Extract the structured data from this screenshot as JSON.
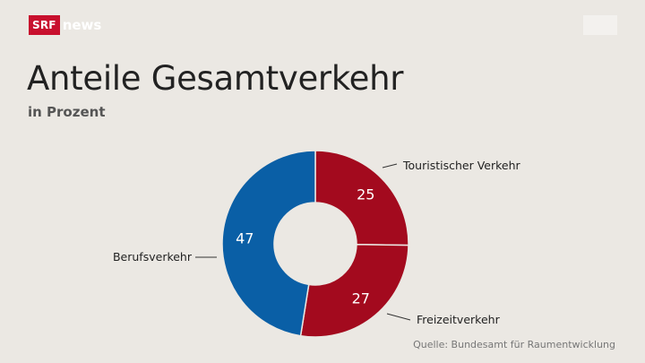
{
  "brand": {
    "srf": "SRF",
    "news": "news"
  },
  "chart_data": {
    "type": "pie",
    "title": "Anteile Gesamtverkehr",
    "subtitle": "in Prozent",
    "source": "Quelle: Bundesamt für Raumentwicklung",
    "donut": true,
    "slices": [
      {
        "label": "Touristischer Verkehr",
        "value": 25,
        "color": "#a30a1e"
      },
      {
        "label": "Freizeitverkehr",
        "value": 27,
        "color": "#a30a1e"
      },
      {
        "label": "Berufsverkehr",
        "value": 47,
        "color": "#0a5fa6"
      }
    ]
  }
}
